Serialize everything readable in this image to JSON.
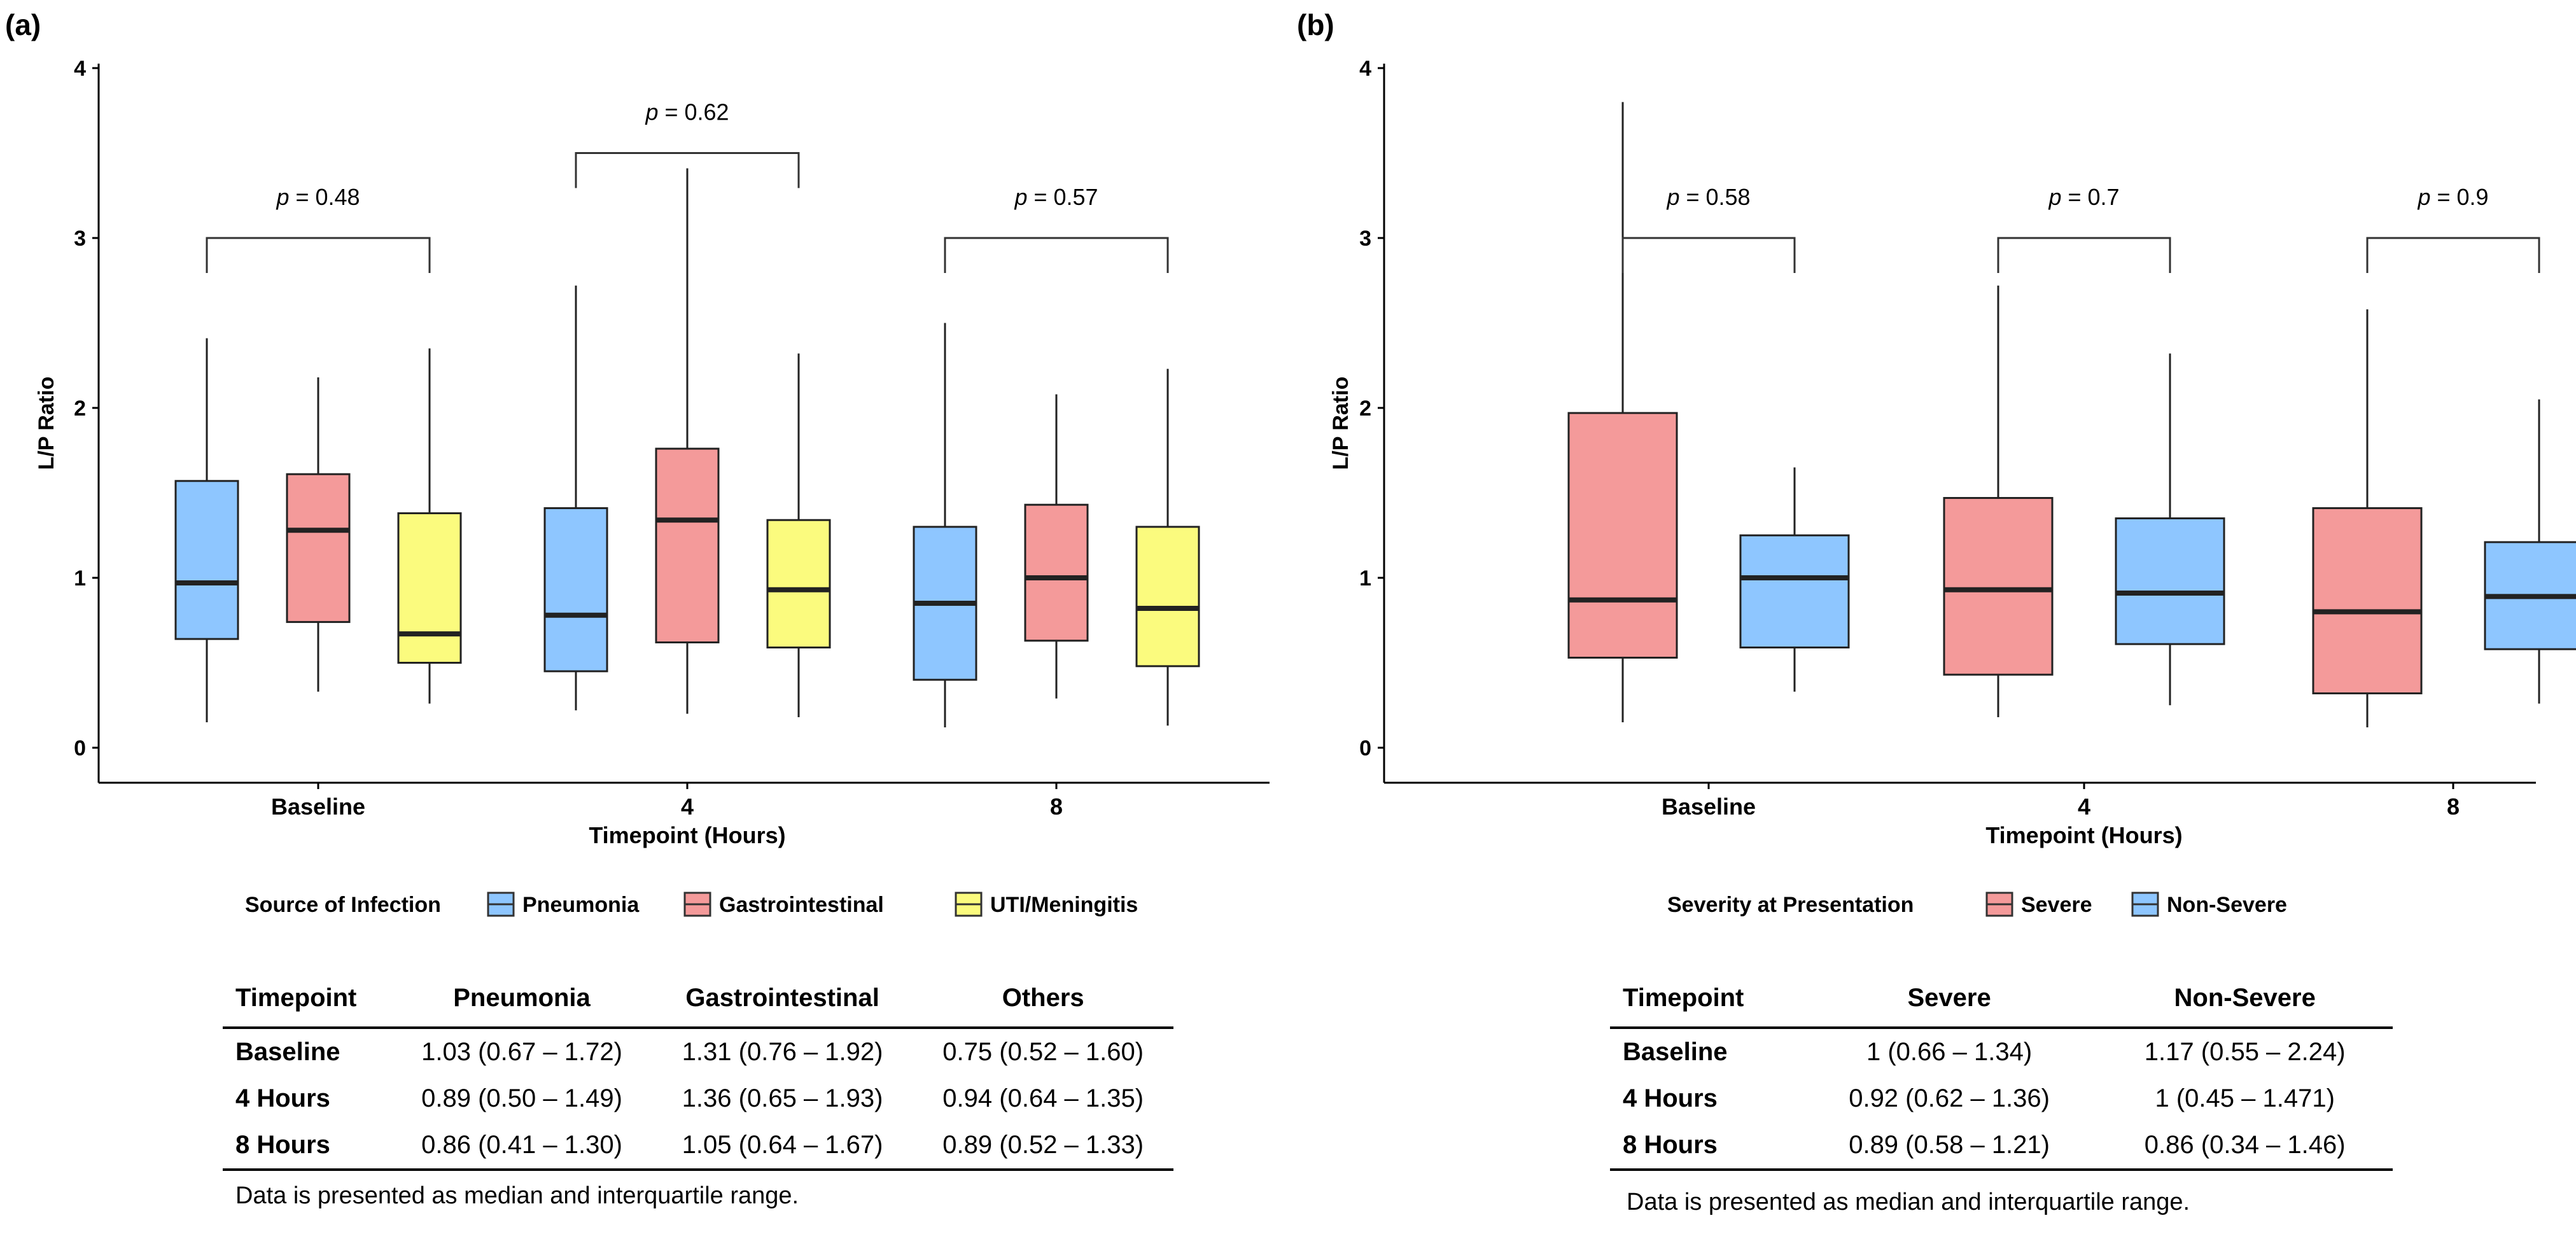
{
  "colors": {
    "pneumonia": "#8ec6ff",
    "gastrointestinal": "#f49a9a",
    "uti": "#fbfb7e",
    "severe": "#f49a9a",
    "non_severe": "#8ec6ff"
  },
  "chart_data": [
    {
      "panel": "(a)",
      "type": "box",
      "xlabel": "Timepoint (Hours)",
      "ylabel": "L/P Ratio",
      "ylim": [
        0,
        4
      ],
      "yticks": [
        "0",
        "1",
        "2",
        "3",
        "4"
      ],
      "categories": [
        "Baseline",
        "4",
        "8"
      ],
      "legend_title": "Source of Infection",
      "series": [
        {
          "name": "Pneumonia",
          "color": "#8ec6ff",
          "boxes": [
            {
              "min": 0.15,
              "q1": 0.64,
              "median": 0.97,
              "q3": 1.57,
              "max": 2.41
            },
            {
              "min": 0.22,
              "q1": 0.45,
              "median": 0.78,
              "q3": 1.41,
              "max": 2.72
            },
            {
              "min": 0.12,
              "q1": 0.4,
              "median": 0.85,
              "q3": 1.3,
              "max": 2.5
            }
          ]
        },
        {
          "name": "Gastrointestinal",
          "color": "#f49a9a",
          "boxes": [
            {
              "min": 0.33,
              "q1": 0.74,
              "median": 1.28,
              "q3": 1.61,
              "max": 2.18
            },
            {
              "min": 0.2,
              "q1": 0.62,
              "median": 1.34,
              "q3": 1.76,
              "max": 3.41
            },
            {
              "min": 0.29,
              "q1": 0.63,
              "median": 1.0,
              "q3": 1.43,
              "max": 2.08
            }
          ]
        },
        {
          "name": "UTI/Meningitis",
          "color": "#fbfb7e",
          "boxes": [
            {
              "min": 0.26,
              "q1": 0.5,
              "median": 0.67,
              "q3": 1.38,
              "max": 2.35
            },
            {
              "min": 0.18,
              "q1": 0.59,
              "median": 0.93,
              "q3": 1.34,
              "max": 2.32
            },
            {
              "min": 0.13,
              "q1": 0.48,
              "median": 0.82,
              "q3": 1.3,
              "max": 2.23
            }
          ]
        }
      ],
      "pvalues": [
        {
          "label": "p",
          "value": " = 0.48",
          "y": 3.0
        },
        {
          "label": "p",
          "value": " = 0.62",
          "y": 3.5
        },
        {
          "label": "p",
          "value": " = 0.57",
          "y": 3.0
        }
      ],
      "table": {
        "headers": [
          "Timepoint",
          "Pneumonia",
          "Gastrointestinal",
          "Others"
        ],
        "rows": [
          [
            "Baseline",
            "1.03 (0.67 – 1.72)",
            "1.31 (0.76 – 1.92)",
            "0.75 (0.52 – 1.60)"
          ],
          [
            "4 Hours",
            "0.89 (0.50 – 1.49)",
            "1.36 (0.65 – 1.93)",
            "0.94 (0.64 – 1.35)"
          ],
          [
            "8 Hours",
            "0.86 (0.41 – 1.30)",
            "1.05 (0.64 – 1.67)",
            "0.89 (0.52 – 1.33)"
          ]
        ],
        "footnote": "Data is presented as median and interquartile range."
      }
    },
    {
      "panel": "(b)",
      "type": "box",
      "xlabel": "Timepoint (Hours)",
      "ylabel": "L/P Ratio",
      "ylim": [
        0,
        4
      ],
      "yticks": [
        "0",
        "1",
        "2",
        "3",
        "4"
      ],
      "categories": [
        "Baseline",
        "4",
        "8"
      ],
      "legend_title": "Severity at Presentation",
      "series": [
        {
          "name": "Severe",
          "color": "#f49a9a",
          "boxes": [
            {
              "min": 0.15,
              "q1": 0.53,
              "median": 0.87,
              "q3": 1.97,
              "max": 3.8
            },
            {
              "min": 0.18,
              "q1": 0.43,
              "median": 0.93,
              "q3": 1.47,
              "max": 2.72
            },
            {
              "min": 0.12,
              "q1": 0.32,
              "median": 0.8,
              "q3": 1.41,
              "max": 2.58
            }
          ]
        },
        {
          "name": "Non-Severe",
          "color": "#8ec6ff",
          "boxes": [
            {
              "min": 0.33,
              "q1": 0.59,
              "median": 1.0,
              "q3": 1.25,
              "max": 1.65
            },
            {
              "min": 0.25,
              "q1": 0.61,
              "median": 0.91,
              "q3": 1.35,
              "max": 2.32
            },
            {
              "min": 0.26,
              "q1": 0.58,
              "median": 0.89,
              "q3": 1.21,
              "max": 2.05
            }
          ]
        }
      ],
      "pvalues": [
        {
          "label": "p",
          "value": " = 0.58",
          "y": 3.0
        },
        {
          "label": "p",
          "value": " = 0.7",
          "y": 3.0
        },
        {
          "label": "p",
          "value": " = 0.9",
          "y": 3.0
        }
      ],
      "table": {
        "headers": [
          "Timepoint",
          "Severe",
          "Non-Severe"
        ],
        "rows": [
          [
            "Baseline",
            "1 (0.66 – 1.34)",
            "1.17 (0.55 – 2.24)"
          ],
          [
            "4 Hours",
            "0.92 (0.62 – 1.36)",
            "1 (0.45 – 1.471)"
          ],
          [
            "8 Hours",
            "0.89 (0.58 – 1.21)",
            "0.86 (0.34 – 1.46)"
          ]
        ],
        "footnote": "Data is presented as median and interquartile range."
      }
    }
  ]
}
